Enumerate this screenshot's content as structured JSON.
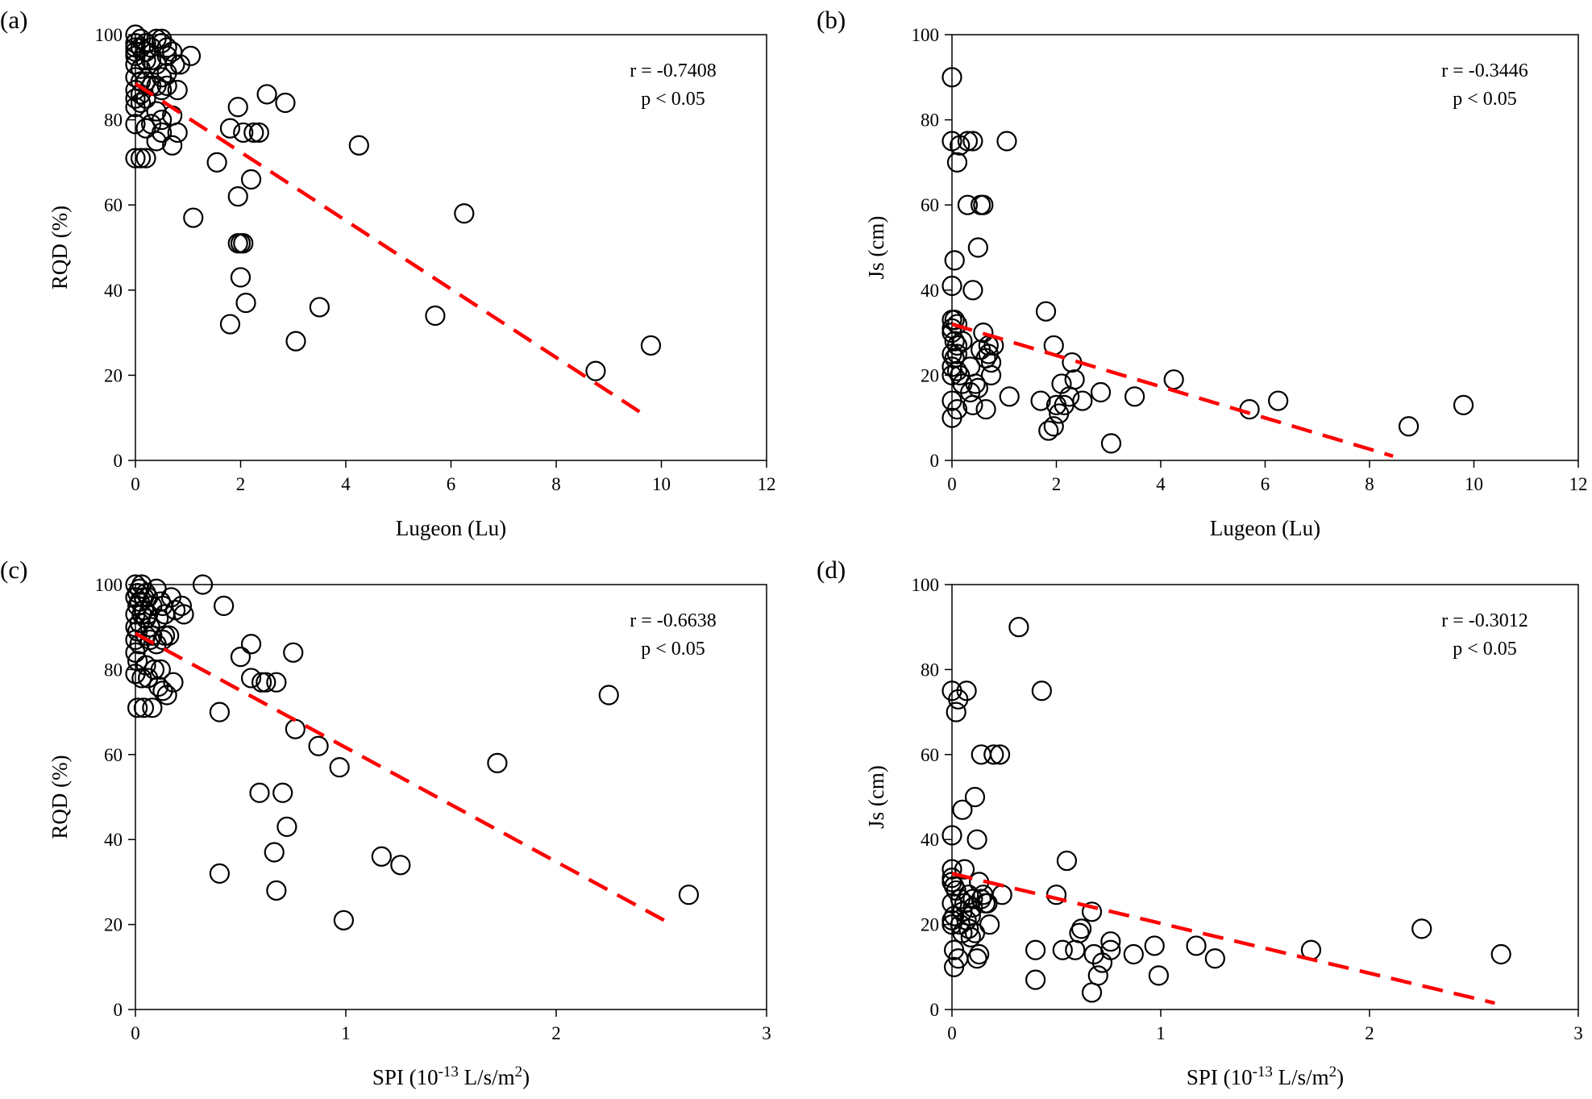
{
  "chart_data": [
    {
      "type": "scatter",
      "panel_label": "(a)",
      "xlabel": "Lugeon (Lu)",
      "ylabel": "RQD (%)",
      "xlim": [
        0,
        12
      ],
      "ylim": [
        0,
        100
      ],
      "xticks": [
        0,
        2,
        4,
        6,
        8,
        10,
        12
      ],
      "yticks": [
        0,
        20,
        40,
        60,
        80,
        100
      ],
      "annotation": [
        "r = -0.7408",
        "p < 0.05"
      ],
      "trend": {
        "x": [
          0,
          9.7
        ],
        "y": [
          88.5,
          10.5
        ]
      },
      "x": [
        0,
        0,
        0,
        0,
        0,
        0,
        0,
        0,
        0,
        0,
        0,
        0,
        0.1,
        0.1,
        0.1,
        0.1,
        0.1,
        0.1,
        0.1,
        0.2,
        0.2,
        0.2,
        0.2,
        0.2,
        0.2,
        0.2,
        0.3,
        0.3,
        0.3,
        0.3,
        0.4,
        0.4,
        0.4,
        0.4,
        0.4,
        0.5,
        0.5,
        0.5,
        0.5,
        0.5,
        0.5,
        0.6,
        0.6,
        0.6,
        0.6,
        0.7,
        0.7,
        0.7,
        0.75,
        0.8,
        0.8,
        0.85,
        1.05,
        1.1,
        1.55,
        1.8,
        1.8,
        1.95,
        1.95,
        1.95,
        2.0,
        2.0,
        2.05,
        2.05,
        2.1,
        2.2,
        2.25,
        2.35,
        2.5,
        2.85,
        3.05,
        3.5,
        4.25,
        5.7,
        6.25,
        8.75,
        9.8
      ],
      "y": [
        100,
        98,
        97,
        96,
        93,
        90,
        87,
        85,
        83,
        79,
        71,
        95,
        99,
        97,
        92,
        89,
        86,
        84,
        71,
        98,
        96,
        94,
        89,
        85,
        78,
        71,
        97,
        94,
        88,
        79,
        99,
        93,
        88,
        82,
        75,
        99,
        98,
        90,
        87,
        80,
        77,
        97,
        95,
        91,
        88,
        96,
        81,
        74,
        93,
        87,
        77,
        93,
        95,
        57,
        70,
        78,
        32,
        83,
        62,
        51,
        43,
        51,
        77,
        51,
        37,
        66,
        77,
        77,
        86,
        84,
        28,
        36,
        74,
        34,
        58,
        21,
        27
      ]
    },
    {
      "type": "scatter",
      "panel_label": "(b)",
      "xlabel": "Lugeon (Lu)",
      "ylabel": "Js (cm)",
      "xlim": [
        0,
        12
      ],
      "ylim": [
        0,
        100
      ],
      "xticks": [
        0,
        2,
        4,
        6,
        8,
        10,
        12
      ],
      "yticks": [
        0,
        20,
        40,
        60,
        80,
        100
      ],
      "annotation": [
        "r = -0.3446",
        "p < 0.05"
      ],
      "trend": {
        "x": [
          0,
          8.45
        ],
        "y": [
          32,
          1
        ]
      },
      "x": [
        0,
        0,
        0,
        0,
        0,
        0,
        0,
        0,
        0,
        0,
        0,
        0.05,
        0.05,
        0.05,
        0.05,
        0.1,
        0.1,
        0.1,
        0.1,
        0.1,
        0.1,
        0.15,
        0.15,
        0.2,
        0.2,
        0.3,
        0.3,
        0.35,
        0.35,
        0.4,
        0.4,
        0.4,
        0.45,
        0.5,
        0.5,
        0.55,
        0.55,
        0.6,
        0.6,
        0.65,
        0.65,
        0.7,
        0.7,
        0.75,
        0.75,
        0.8,
        1.05,
        1.1,
        1.7,
        1.8,
        1.85,
        1.95,
        1.95,
        2.0,
        2.05,
        2.1,
        2.15,
        2.25,
        2.3,
        2.35,
        2.5,
        2.85,
        3.05,
        3.5,
        4.25,
        5.7,
        6.25,
        8.75,
        9.8
      ],
      "y": [
        90,
        75,
        41,
        33,
        31,
        30,
        25,
        22,
        20,
        14,
        10,
        47,
        33,
        28,
        24,
        70,
        32,
        27,
        25,
        21,
        12,
        74,
        20,
        28,
        18,
        75,
        60,
        22,
        16,
        75,
        40,
        13,
        18,
        50,
        17,
        60,
        26,
        60,
        30,
        24,
        12,
        27,
        25,
        23,
        20,
        27,
        75,
        15,
        14,
        35,
        7,
        27,
        8,
        13,
        11,
        18,
        13,
        15,
        23,
        19,
        14,
        16,
        4,
        15,
        19,
        12,
        14,
        8,
        13
      ]
    },
    {
      "type": "scatter",
      "panel_label": "(c)",
      "xlabel": "SPI (10-13 L/s/m2)",
      "ylabel": "RQD (%)",
      "xlim": [
        0,
        3
      ],
      "ylim": [
        0,
        100
      ],
      "xticks": [
        0,
        1,
        2,
        3
      ],
      "yticks": [
        0,
        20,
        40,
        60,
        80,
        100
      ],
      "annotation": [
        "r = -0.6638",
        "p < 0.05"
      ],
      "trend": {
        "x": [
          0,
          2.55
        ],
        "y": [
          88.5,
          20
        ]
      },
      "x": [
        0,
        0,
        0,
        0,
        0,
        0,
        0,
        0.01,
        0.01,
        0.01,
        0.01,
        0.01,
        0.02,
        0.02,
        0.02,
        0.02,
        0.03,
        0.03,
        0.03,
        0.04,
        0.04,
        0.04,
        0.05,
        0.05,
        0.05,
        0.05,
        0.06,
        0.06,
        0.06,
        0.07,
        0.07,
        0.08,
        0.08,
        0.08,
        0.09,
        0.1,
        0.1,
        0.11,
        0.11,
        0.12,
        0.12,
        0.13,
        0.13,
        0.13,
        0.14,
        0.14,
        0.15,
        0.16,
        0.17,
        0.18,
        0.19,
        0.22,
        0.23,
        0.32,
        0.4,
        0.4,
        0.42,
        0.5,
        0.55,
        0.55,
        0.59,
        0.6,
        0.62,
        0.66,
        0.67,
        0.67,
        0.7,
        0.72,
        0.75,
        0.76,
        0.87,
        0.97,
        0.99,
        1.17,
        1.26,
        1.72,
        2.25,
        2.63
      ],
      "y": [
        100,
        97,
        93,
        90,
        87,
        84,
        79,
        98,
        95,
        89,
        82,
        71,
        99,
        96,
        91,
        86,
        100,
        93,
        78,
        97,
        94,
        71,
        98,
        92,
        88,
        81,
        97,
        93,
        78,
        90,
        87,
        95,
        88,
        71,
        80,
        99,
        86,
        92,
        76,
        96,
        80,
        95,
        87,
        75,
        93,
        88,
        74,
        88,
        97,
        77,
        94,
        95,
        93,
        100,
        70,
        32,
        95,
        83,
        86,
        78,
        51,
        77,
        77,
        37,
        77,
        28,
        51,
        43,
        84,
        66,
        62,
        57,
        21,
        36,
        34,
        58,
        74,
        27
      ]
    },
    {
      "type": "scatter",
      "panel_label": "(d)",
      "xlabel": "SPI (10-13 L/s/m2)",
      "ylabel": "Js (cm)",
      "xlim": [
        0,
        3
      ],
      "ylim": [
        0,
        100
      ],
      "xticks": [
        0,
        1,
        2,
        3
      ],
      "yticks": [
        0,
        20,
        40,
        60,
        80,
        100
      ],
      "annotation": [
        "r = -0.3012",
        "p < 0.05"
      ],
      "trend": {
        "x": [
          0,
          2.6
        ],
        "y": [
          32,
          1.5
        ]
      },
      "x": [
        0,
        0,
        0,
        0,
        0,
        0,
        0,
        0,
        0.01,
        0.01,
        0.01,
        0.01,
        0.02,
        0.02,
        0.03,
        0.03,
        0.04,
        0.04,
        0.05,
        0.05,
        0.05,
        0.06,
        0.06,
        0.07,
        0.07,
        0.08,
        0.08,
        0.09,
        0.09,
        0.1,
        0.1,
        0.11,
        0.11,
        0.12,
        0.12,
        0.13,
        0.13,
        0.14,
        0.14,
        0.15,
        0.16,
        0.17,
        0.18,
        0.2,
        0.23,
        0.24,
        0.32,
        0.4,
        0.4,
        0.43,
        0.5,
        0.53,
        0.55,
        0.59,
        0.61,
        0.62,
        0.67,
        0.67,
        0.68,
        0.7,
        0.72,
        0.76,
        0.76,
        0.87,
        0.97,
        0.99,
        1.17,
        1.26,
        1.72,
        2.25,
        2.63
      ],
      "y": [
        75,
        41,
        33,
        31,
        30,
        25,
        21,
        20,
        29,
        22,
        14,
        10,
        70,
        28,
        73,
        12,
        26,
        20,
        47,
        23,
        18,
        33,
        25,
        75,
        21,
        27,
        19,
        22,
        17,
        24,
        26,
        50,
        18,
        40,
        12,
        30,
        13,
        60,
        26,
        27,
        25,
        25,
        20,
        60,
        60,
        27,
        90,
        14,
        7,
        75,
        27,
        14,
        35,
        14,
        18,
        19,
        23,
        4,
        13,
        8,
        11,
        16,
        14,
        13,
        15,
        8,
        15,
        12,
        14,
        19,
        13
      ]
    }
  ]
}
